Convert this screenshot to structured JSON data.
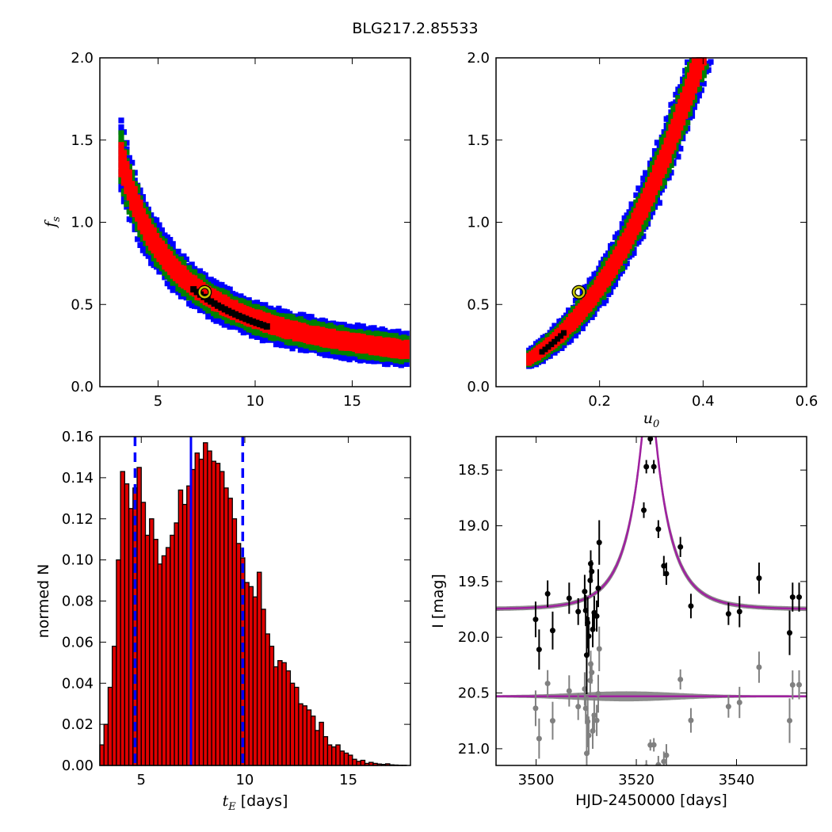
{
  "figure": {
    "title": "BLG217.2.85533"
  },
  "colors": {
    "contour_inner": "#000000",
    "contour_1sigma": "#ff0000",
    "contour_2sigma": "#008000",
    "contour_3sigma": "#0000ff",
    "best_fit_marker": "#c8c800",
    "histogram_bar": "#e00000",
    "histogram_lines": "#0000ff",
    "model_curve": "#a020a0",
    "model_band": "#808080",
    "data_points": "#000000",
    "residual_points": "#808080"
  },
  "chart_data": [
    {
      "id": "fs_vs_tE",
      "type": "heatmap",
      "xlabel": "",
      "ylabel": "f_s",
      "xlim": [
        2,
        18
      ],
      "ylim": [
        0,
        2
      ],
      "xticks": [
        "5",
        "10",
        "15"
      ],
      "yticks": [
        "0.0",
        "0.5",
        "1.0",
        "1.5",
        "2.0"
      ],
      "relation": "f_s ≈ 4.2 / t_E",
      "tE_range": [
        3.0,
        17.8
      ],
      "best_fit": {
        "x": 7.4,
        "y": 0.575
      }
    },
    {
      "id": "fs_vs_u0",
      "type": "heatmap",
      "xlabel": "u_0",
      "ylabel": "",
      "xlim": [
        0.0,
        0.6
      ],
      "ylim": [
        0,
        2
      ],
      "xticks": [
        "0.2",
        "0.4",
        "0.6"
      ],
      "yticks": [
        "0.0",
        "0.5",
        "1.0",
        "1.5",
        "2.0"
      ],
      "relation": "f_s rises steeply with u_0 (0.06 → 0.42)",
      "best_fit": {
        "x": 0.16,
        "y": 0.575
      }
    },
    {
      "id": "tE_histogram",
      "type": "bar",
      "xlabel": "t_E  [days]",
      "ylabel": "normed N",
      "xlim": [
        3,
        18
      ],
      "ylim": [
        0,
        0.16
      ],
      "xticks": [
        "5",
        "10",
        "15"
      ],
      "yticks": [
        "0.00",
        "0.02",
        "0.04",
        "0.06",
        "0.08",
        "0.10",
        "0.12",
        "0.14",
        "0.16"
      ],
      "bin_start": 3.0,
      "bin_width": 0.2,
      "values": [
        0.01,
        0.02,
        0.038,
        0.058,
        0.1,
        0.143,
        0.137,
        0.125,
        0.135,
        0.145,
        0.128,
        0.112,
        0.12,
        0.11,
        0.098,
        0.102,
        0.106,
        0.112,
        0.118,
        0.134,
        0.127,
        0.136,
        0.144,
        0.152,
        0.149,
        0.157,
        0.153,
        0.148,
        0.147,
        0.143,
        0.135,
        0.13,
        0.12,
        0.108,
        0.101,
        0.089,
        0.087,
        0.082,
        0.094,
        0.076,
        0.064,
        0.058,
        0.048,
        0.051,
        0.05,
        0.046,
        0.04,
        0.038,
        0.03,
        0.029,
        0.027,
        0.024,
        0.017,
        0.021,
        0.014,
        0.01,
        0.009,
        0.01,
        0.007,
        0.006,
        0.005,
        0.003,
        0.002,
        0.0025,
        0.001,
        0.0015,
        0.001,
        0.0007,
        0.0005,
        0.0008,
        0.0003,
        0.0002,
        0.0001,
        0.0001
      ],
      "median": 7.4,
      "interval": [
        4.7,
        9.9
      ]
    },
    {
      "id": "lightcurve",
      "type": "scatter",
      "xlabel": "HJD-2450000 [days]",
      "ylabel": "I [mag]",
      "xlim": [
        3492,
        3554
      ],
      "ylim": [
        21.15,
        18.2
      ],
      "xticks": [
        "3500",
        "3520",
        "3540"
      ],
      "yticks": [
        "18.5",
        "19.0",
        "19.5",
        "20.0",
        "20.5",
        "21.0"
      ],
      "model": {
        "t0": 3522.5,
        "tE": 7.4,
        "u0": 0.16,
        "baseline": 19.75,
        "residual_level": 20.53
      },
      "points": [
        {
          "x": 3499.9,
          "y": 19.84,
          "err": 0.16
        },
        {
          "x": 3500.6,
          "y": 20.11,
          "err": 0.18
        },
        {
          "x": 3502.3,
          "y": 19.61,
          "err": 0.12
        },
        {
          "x": 3503.3,
          "y": 19.94,
          "err": 0.17
        },
        {
          "x": 3506.6,
          "y": 19.65,
          "err": 0.14
        },
        {
          "x": 3508.4,
          "y": 19.77,
          "err": 0.12
        },
        {
          "x": 3509.7,
          "y": 19.59,
          "err": 0.15
        },
        {
          "x": 3509.9,
          "y": 19.76,
          "err": 0.14
        },
        {
          "x": 3510.1,
          "y": 20.16,
          "err": 0.35
        },
        {
          "x": 3510.3,
          "y": 19.87,
          "err": 0.23
        },
        {
          "x": 3510.5,
          "y": 19.99,
          "err": 0.17
        },
        {
          "x": 3510.8,
          "y": 19.49,
          "err": 0.13
        },
        {
          "x": 3510.9,
          "y": 19.34,
          "err": 0.12
        },
        {
          "x": 3511.1,
          "y": 19.41,
          "err": 0.1
        },
        {
          "x": 3511.3,
          "y": 19.93,
          "err": 0.16
        },
        {
          "x": 3511.6,
          "y": 19.78,
          "err": 0.15
        },
        {
          "x": 3512.1,
          "y": 19.81,
          "err": 0.14
        },
        {
          "x": 3512.4,
          "y": 19.56,
          "err": 0.17
        },
        {
          "x": 3512.6,
          "y": 19.15,
          "err": 0.2
        },
        {
          "x": 3521.5,
          "y": 18.86,
          "err": 0.07
        },
        {
          "x": 3522.0,
          "y": 18.47,
          "err": 0.06
        },
        {
          "x": 3522.8,
          "y": 18.22,
          "err": 0.05
        },
        {
          "x": 3523.5,
          "y": 18.47,
          "err": 0.06
        },
        {
          "x": 3524.4,
          "y": 19.03,
          "err": 0.08
        },
        {
          "x": 3525.5,
          "y": 19.36,
          "err": 0.09
        },
        {
          "x": 3526.0,
          "y": 19.43,
          "err": 0.1
        },
        {
          "x": 3528.8,
          "y": 19.19,
          "err": 0.09
        },
        {
          "x": 3530.9,
          "y": 19.72,
          "err": 0.11
        },
        {
          "x": 3538.4,
          "y": 19.79,
          "err": 0.1
        },
        {
          "x": 3540.6,
          "y": 19.77,
          "err": 0.14
        },
        {
          "x": 3544.5,
          "y": 19.47,
          "err": 0.14
        },
        {
          "x": 3550.6,
          "y": 19.96,
          "err": 0.2
        },
        {
          "x": 3551.2,
          "y": 19.64,
          "err": 0.13
        },
        {
          "x": 3552.5,
          "y": 19.64,
          "err": 0.13
        }
      ]
    }
  ]
}
